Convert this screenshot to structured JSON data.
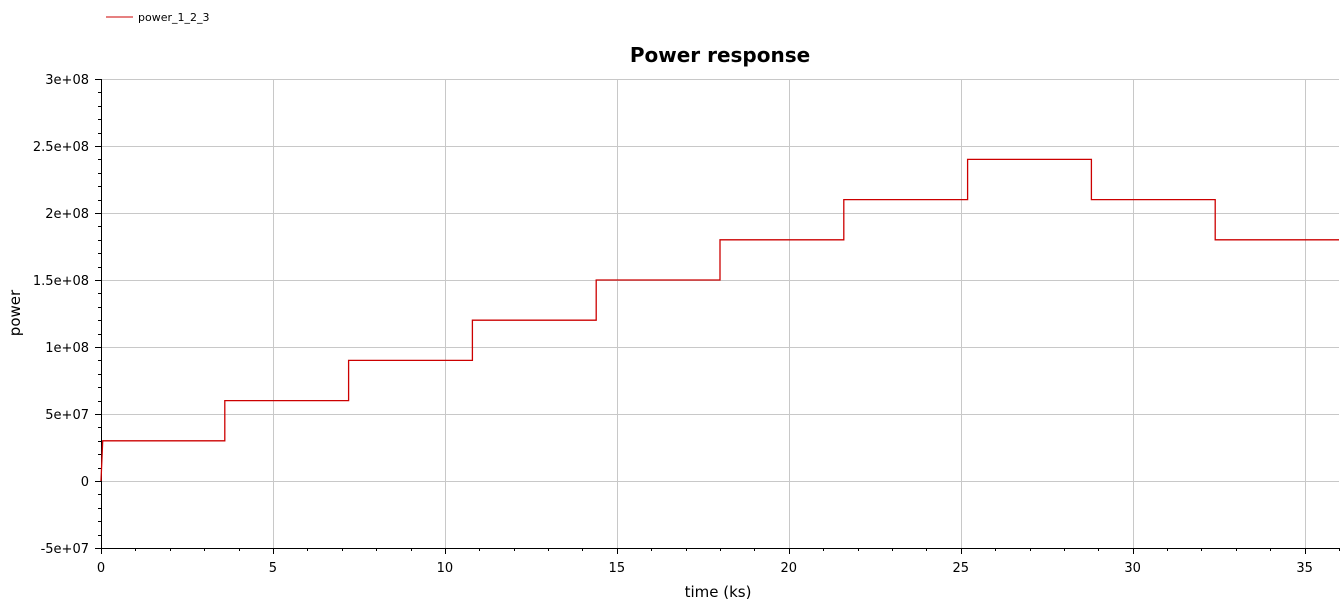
{
  "chart_data": {
    "type": "line",
    "title": "Power response",
    "xlabel": "time (ks)",
    "ylabel": "power",
    "xlim": [
      0,
      36
    ],
    "ylim": [
      -50000000,
      300000000
    ],
    "x_ticks": [
      0,
      5,
      10,
      15,
      20,
      25,
      30,
      35
    ],
    "x_tick_labels": [
      "0",
      "5",
      "10",
      "15",
      "20",
      "25",
      "30",
      "35"
    ],
    "y_ticks": [
      -50000000,
      0,
      50000000,
      100000000,
      150000000,
      200000000,
      250000000,
      300000000
    ],
    "y_tick_labels": [
      "-5e+07",
      "0",
      "5e+07",
      "1e+08",
      "1.5e+08",
      "2e+08",
      "2.5e+08",
      "3e+08"
    ],
    "grid": true,
    "legend_position": "top-left",
    "series": [
      {
        "name": "power_1_2_3",
        "color": "#cc0000",
        "x": [
          0,
          0.05,
          3.6,
          3.6,
          7.2,
          7.2,
          10.8,
          10.8,
          14.4,
          14.4,
          18.0,
          18.0,
          21.6,
          21.6,
          25.2,
          25.2,
          28.8,
          28.8,
          32.4,
          32.4,
          36
        ],
        "y": [
          0,
          30000000,
          30000000,
          60000000,
          60000000,
          90000000,
          90000000,
          120000000,
          120000000,
          150000000,
          150000000,
          180000000,
          180000000,
          210000000,
          210000000,
          240000000,
          240000000,
          210000000,
          210000000,
          180000000,
          180000000
        ]
      }
    ]
  }
}
